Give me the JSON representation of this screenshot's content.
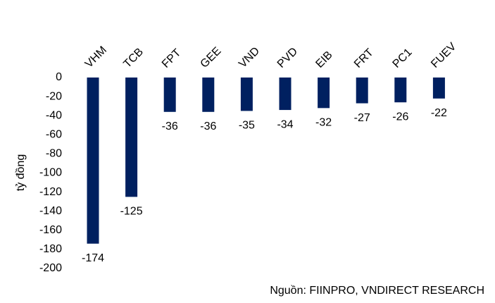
{
  "chart_data": {
    "type": "bar",
    "categories": [
      "VHM",
      "TCB",
      "FPT",
      "GEE",
      "VND",
      "PVD",
      "EIB",
      "FRT",
      "PC1",
      "FUEV"
    ],
    "values": [
      -174,
      -125,
      -36,
      -36,
      -35,
      -34,
      -32,
      -27,
      -26,
      -22
    ],
    "color": "#002060",
    "y_label": "tỷ đồng",
    "source": "Nguồn:  FIINPRO, VNDIRECT RESEARCH",
    "ylim": [
      -200,
      0
    ],
    "yticks": [
      0,
      -20,
      -40,
      -60,
      -80,
      -100,
      -120,
      -140,
      -160,
      -180,
      -200
    ],
    "grid": false
  }
}
